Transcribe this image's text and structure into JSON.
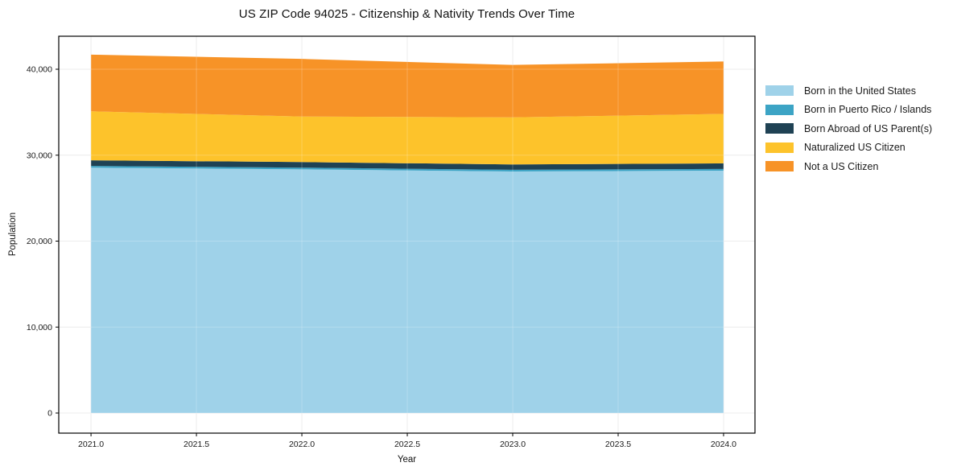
{
  "title": "US ZIP Code 94025 - Citizenship & Nativity Trends Over Time",
  "axes": {
    "xlabel": "Year",
    "ylabel": "Population",
    "x_tick_labels": [
      "2021.0",
      "2021.5",
      "2022.0",
      "2022.5",
      "2023.0",
      "2023.5",
      "2024.0"
    ],
    "y_tick_labels": [
      "0",
      "10,000",
      "20,000",
      "30,000",
      "40,000"
    ]
  },
  "legend": {
    "items": [
      {
        "label": "Born in the United States",
        "color": "#9fd2e9"
      },
      {
        "label": "Born in Puerto Rico / Islands",
        "color": "#3ca4c5"
      },
      {
        "label": "Born Abroad of US Parent(s)",
        "color": "#1f4254"
      },
      {
        "label": "Naturalized US Citizen",
        "color": "#fdc32b"
      },
      {
        "label": "Not a US Citizen",
        "color": "#f79327"
      }
    ]
  },
  "colors": {
    "grid": "#e8e8e8",
    "grid_overlay": "rgba(255,255,255,0.22)",
    "spine": "#000000",
    "background": "#ffffff"
  },
  "chart_data": {
    "type": "area",
    "stacked": true,
    "title": "US ZIP Code 94025 - Citizenship & Nativity Trends Over Time",
    "xlabel": "Year",
    "ylabel": "Population",
    "x": [
      2021,
      2022,
      2023,
      2024
    ],
    "series": [
      {
        "name": "Born in the United States",
        "color": "#9fd2e9",
        "values": [
          28550,
          28350,
          28100,
          28200
        ]
      },
      {
        "name": "Born in Puerto Rico / Islands",
        "color": "#3ca4c5",
        "values": [
          200,
          200,
          200,
          200
        ]
      },
      {
        "name": "Born Abroad of US Parent(s)",
        "color": "#1f4254",
        "values": [
          650,
          650,
          620,
          650
        ]
      },
      {
        "name": "Naturalized US Citizen",
        "color": "#fdc32b",
        "values": [
          5700,
          5300,
          5480,
          5750
        ]
      },
      {
        "name": "Not a US Citizen",
        "color": "#f79327",
        "values": [
          6600,
          6700,
          6100,
          6100
        ]
      }
    ],
    "totals_by_year": [
      41700,
      41200,
      40500,
      40900
    ],
    "xlim": [
      2020.847,
      2024.149
    ],
    "ylim": [
      -2340,
      43840
    ],
    "x_tick_values": [
      2021.0,
      2021.5,
      2022.0,
      2022.5,
      2023.0,
      2023.5,
      2024.0
    ],
    "y_tick_values": [
      0,
      10000,
      20000,
      30000,
      40000
    ],
    "grid": true,
    "legend_position": "right"
  }
}
